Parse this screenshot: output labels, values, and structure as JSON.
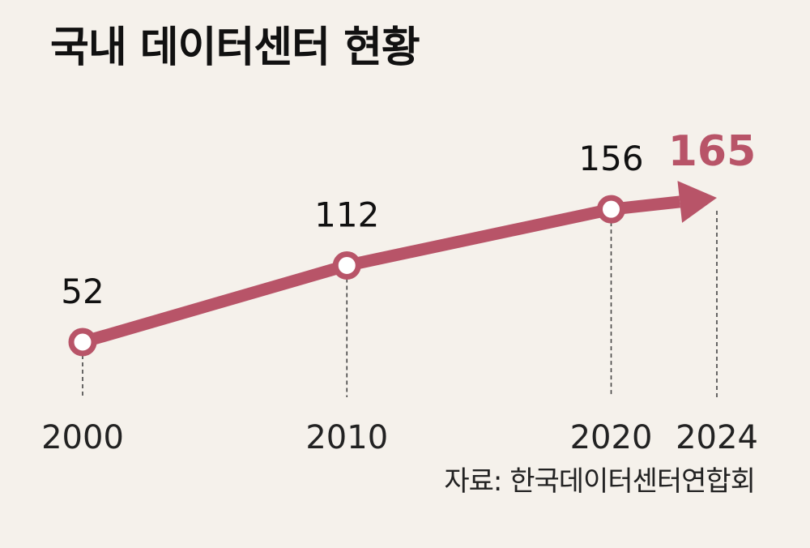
{
  "title": "국내 데이터센터 현황",
  "source": "자료: 한국데이터센터연합회",
  "colors": {
    "accent": "#b85468",
    "background": "#f5f1eb",
    "text": "#111111",
    "guide": "#444444"
  },
  "chart_data": {
    "type": "line",
    "title": "국내 데이터센터 현황",
    "xlabel": "",
    "ylabel": "",
    "categories": [
      "2000",
      "2010",
      "2020",
      "2024"
    ],
    "series": [
      {
        "values": [
          52,
          112,
          156,
          165
        ]
      }
    ],
    "data_labels": [
      "52",
      "112",
      "156",
      "165"
    ],
    "highlight_last": true,
    "grid": false,
    "legend": "none"
  }
}
